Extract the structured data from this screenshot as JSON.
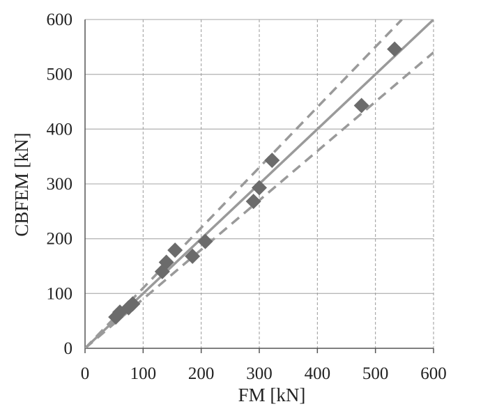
{
  "chart_data": {
    "type": "scatter",
    "title": "",
    "xlabel": "FM [kN]",
    "ylabel": "CBFEM [kN]",
    "xlim": [
      0,
      600
    ],
    "ylim": [
      0,
      600
    ],
    "xticks": [
      0,
      100,
      200,
      300,
      400,
      500,
      600
    ],
    "yticks": [
      0,
      100,
      200,
      300,
      400,
      500,
      600
    ],
    "grid": {
      "x": "dashed",
      "y": "solid"
    },
    "legend": "none",
    "series": [
      {
        "marker": "diamond",
        "color": "#6b6b6b",
        "points": [
          {
            "x": 53,
            "y": 57
          },
          {
            "x": 60,
            "y": 66
          },
          {
            "x": 75,
            "y": 74
          },
          {
            "x": 82,
            "y": 81
          },
          {
            "x": 133,
            "y": 140
          },
          {
            "x": 140,
            "y": 157
          },
          {
            "x": 155,
            "y": 179
          },
          {
            "x": 185,
            "y": 168
          },
          {
            "x": 207,
            "y": 195
          },
          {
            "x": 290,
            "y": 268
          },
          {
            "x": 300,
            "y": 293
          },
          {
            "x": 322,
            "y": 343
          },
          {
            "x": 476,
            "y": 443
          },
          {
            "x": 533,
            "y": 546
          }
        ]
      }
    ],
    "reference_lines": [
      {
        "style": "solid",
        "color": "#9a9a9a",
        "slope": 1.0
      },
      {
        "style": "dashed",
        "color": "#9a9a9a",
        "slope": 1.1
      },
      {
        "style": "dashed",
        "color": "#9a9a9a",
        "slope": 0.9
      }
    ]
  }
}
